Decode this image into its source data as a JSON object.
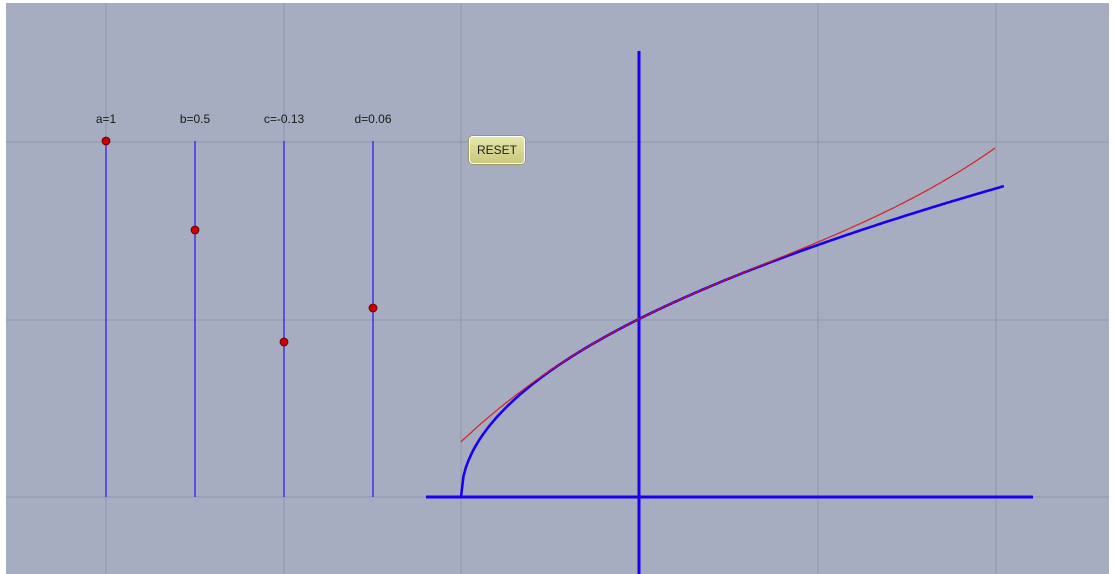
{
  "sliders": [
    {
      "label": "a=1",
      "value": 1,
      "color": "#cc0000"
    },
    {
      "label": "b=0.5",
      "value": 0.5,
      "color": "#cc0000"
    },
    {
      "label": "c=-0.13",
      "value": -0.13,
      "color": "#cc0000"
    },
    {
      "label": "d=0.06",
      "value": 0.06,
      "color": "#cc0000"
    }
  ],
  "reset": {
    "label": "RESET"
  },
  "colors": {
    "background": "#a6adc1",
    "grid": "#8e96ad",
    "axis": "#1a00ee",
    "slider_track": "#2a14f0",
    "sqrt_curve": "#1a00ee",
    "poly_curve": "#e01010"
  }
}
